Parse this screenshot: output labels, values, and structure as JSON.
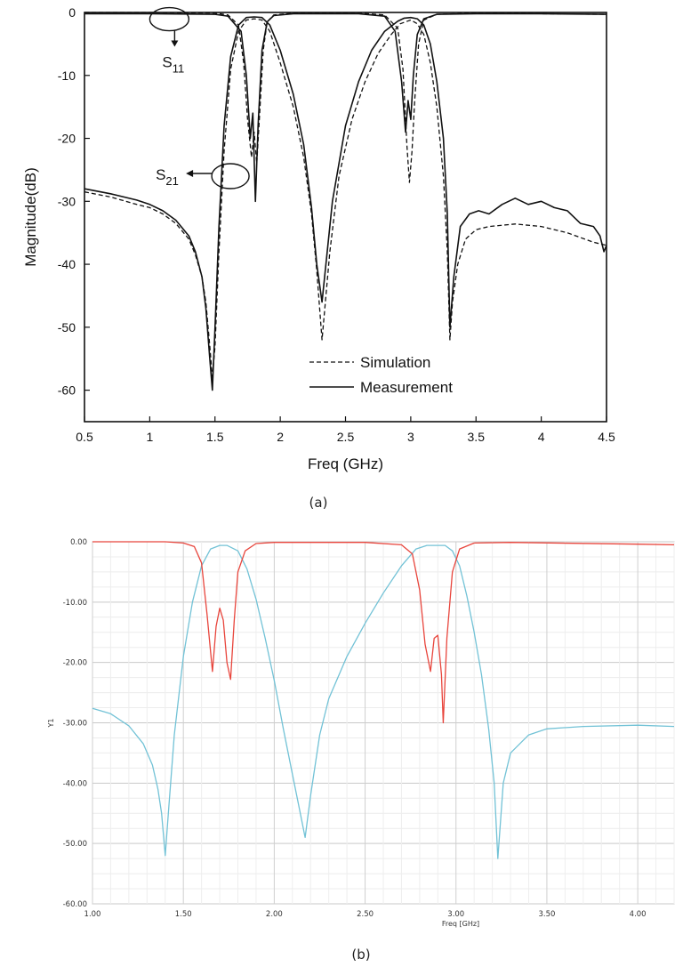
{
  "chart_data": [
    {
      "type": "line",
      "panel_label": "(a)",
      "xlabel": "Freq (GHz)",
      "ylabel": "Magnitude(dB)",
      "xlim": [
        0.5,
        4.5
      ],
      "ylim": [
        -65,
        0
      ],
      "xticks": [
        0.5,
        1,
        1.5,
        2,
        2.5,
        3,
        3.5,
        4,
        4.5
      ],
      "xtick_labels": [
        "0.5",
        "1",
        "1.5",
        "2",
        "2.5",
        "3",
        "3.5",
        "4",
        "4.5"
      ],
      "yticks": [
        0,
        -10,
        -20,
        -30,
        -40,
        -50,
        -60
      ],
      "ytick_labels": [
        "0",
        "-10",
        "-20",
        "-30",
        "-40",
        "-50",
        "-60"
      ],
      "grid": false,
      "legend": {
        "position": "bottom-center",
        "entries": [
          {
            "label": "Simulation",
            "style": "dashed"
          },
          {
            "label": "Measurement",
            "style": "solid"
          }
        ]
      },
      "annotations": [
        {
          "text": "S",
          "sub": "11",
          "target_x": 1.15,
          "target_y": -0.5
        },
        {
          "text": "S",
          "sub": "21",
          "target_x": 1.55,
          "target_y": -26
        }
      ],
      "series": [
        {
          "name": "Simulation",
          "parameter": "S21",
          "style": "dashed",
          "x": [
            0.5,
            0.7,
            0.9,
            1.0,
            1.1,
            1.2,
            1.3,
            1.35,
            1.4,
            1.43,
            1.46,
            1.48,
            1.5,
            1.53,
            1.57,
            1.62,
            1.68,
            1.74,
            1.8,
            1.86,
            1.92,
            2.0,
            2.1,
            2.18,
            2.24,
            2.28,
            2.32,
            2.38,
            2.45,
            2.55,
            2.65,
            2.75,
            2.85,
            2.92,
            3.0,
            3.05,
            3.1,
            3.15,
            3.2,
            3.25,
            3.28,
            3.3,
            3.32,
            3.36,
            3.42,
            3.5,
            3.6,
            3.8,
            4.0,
            4.2,
            4.4,
            4.5
          ],
          "y": [
            -28.5,
            -29.3,
            -30.5,
            -31.0,
            -32.0,
            -33.5,
            -36.0,
            -38.5,
            -42.0,
            -46.0,
            -53.0,
            -58.0,
            -53.0,
            -38.0,
            -22.0,
            -9.0,
            -3.0,
            -1.2,
            -1.0,
            -1.2,
            -3.0,
            -8.0,
            -15.0,
            -23.0,
            -32.0,
            -41.0,
            -52.0,
            -38.0,
            -26.0,
            -17.0,
            -11.0,
            -6.5,
            -3.5,
            -1.8,
            -1.2,
            -1.8,
            -3.5,
            -8.0,
            -15.0,
            -26.0,
            -38.0,
            -52.0,
            -46.0,
            -40.0,
            -36.0,
            -34.5,
            -34.0,
            -33.6,
            -34.0,
            -35.0,
            -36.5,
            -37.0
          ]
        },
        {
          "name": "Simulation",
          "parameter": "S11",
          "style": "dashed",
          "x": [
            0.5,
            1.0,
            1.5,
            1.6,
            1.68,
            1.72,
            1.75,
            1.78,
            1.8,
            1.82,
            1.84,
            1.87,
            1.9,
            1.95,
            2.1,
            2.6,
            2.8,
            2.9,
            2.94,
            2.97,
            2.99,
            3.01,
            3.03,
            3.06,
            3.1,
            3.2,
            3.5,
            4.0,
            4.5
          ],
          "y": [
            0,
            0,
            -0.1,
            -0.4,
            -2.0,
            -8.0,
            -17.0,
            -23.0,
            -19.0,
            -24.0,
            -17.0,
            -6.0,
            -1.5,
            -0.4,
            -0.1,
            -0.1,
            -0.4,
            -2.5,
            -9.0,
            -21.0,
            -27.0,
            -22.0,
            -14.0,
            -5.0,
            -1.2,
            -0.3,
            -0.1,
            -0.2,
            -0.3
          ]
        },
        {
          "name": "Measurement",
          "parameter": "S21",
          "style": "solid",
          "x": [
            0.5,
            0.7,
            0.9,
            1.0,
            1.1,
            1.2,
            1.3,
            1.35,
            1.4,
            1.43,
            1.46,
            1.48,
            1.5,
            1.53,
            1.57,
            1.62,
            1.68,
            1.74,
            1.8,
            1.86,
            1.92,
            2.0,
            2.1,
            2.18,
            2.24,
            2.28,
            2.32,
            2.4,
            2.5,
            2.6,
            2.7,
            2.8,
            2.9,
            2.95,
            3.0,
            3.05,
            3.1,
            3.15,
            3.2,
            3.25,
            3.28,
            3.3,
            3.33,
            3.38,
            3.45,
            3.52,
            3.6,
            3.7,
            3.8,
            3.9,
            4.0,
            4.1,
            4.2,
            4.3,
            4.4,
            4.45,
            4.48,
            4.5
          ],
          "y": [
            -28.0,
            -28.8,
            -29.8,
            -30.5,
            -31.5,
            -33.0,
            -35.5,
            -38.0,
            -42.0,
            -47.0,
            -55.0,
            -60.0,
            -50.0,
            -34.0,
            -18.0,
            -7.0,
            -2.0,
            -0.8,
            -0.7,
            -0.8,
            -2.0,
            -6.0,
            -13.0,
            -21.0,
            -31.0,
            -40.0,
            -46.0,
            -30.0,
            -18.0,
            -11.0,
            -6.0,
            -3.0,
            -1.4,
            -0.9,
            -0.8,
            -1.0,
            -2.0,
            -5.0,
            -11.0,
            -20.0,
            -32.0,
            -50.0,
            -42.0,
            -34.0,
            -32.0,
            -31.5,
            -32.0,
            -30.5,
            -29.5,
            -30.5,
            -30.0,
            -31.0,
            -31.5,
            -33.5,
            -34.0,
            -35.5,
            -38.0,
            -37.0
          ]
        },
        {
          "name": "Measurement",
          "parameter": "S11",
          "style": "solid",
          "x": [
            0.5,
            1.0,
            1.5,
            1.6,
            1.7,
            1.74,
            1.77,
            1.79,
            1.81,
            1.83,
            1.86,
            1.9,
            1.95,
            2.1,
            2.6,
            2.8,
            2.88,
            2.93,
            2.96,
            2.98,
            3.0,
            3.02,
            3.05,
            3.1,
            3.2,
            3.5,
            4.0,
            4.5
          ],
          "y": [
            -0.2,
            -0.2,
            -0.3,
            -0.6,
            -3.0,
            -10.0,
            -20.0,
            -16.0,
            -30.0,
            -18.0,
            -6.0,
            -1.5,
            -0.5,
            -0.2,
            -0.2,
            -0.6,
            -3.0,
            -11.0,
            -19.0,
            -14.0,
            -17.0,
            -10.0,
            -3.5,
            -1.0,
            -0.3,
            -0.2,
            -0.2,
            -0.3
          ]
        }
      ]
    },
    {
      "type": "line",
      "panel_label": "(b)",
      "xlabel": "Freq [GHz]",
      "ylabel": "Y1",
      "xlim": [
        1.0,
        4.2
      ],
      "ylim": [
        -60,
        0
      ],
      "xticks": [
        1.0,
        1.5,
        2.0,
        2.5,
        3.0,
        3.5,
        4.0
      ],
      "xtick_labels": [
        "1.00",
        "1.50",
        "2.00",
        "2.50",
        "3.00",
        "3.50",
        "4.00"
      ],
      "yticks": [
        0,
        -10,
        -20,
        -30,
        -40,
        -50,
        -60
      ],
      "ytick_labels": [
        "0.00",
        "-10.00",
        "-20.00",
        "-30.00",
        "-40.00",
        "-50.00",
        "-60.00"
      ],
      "grid": true,
      "series": [
        {
          "parameter": "S21",
          "color": "#72c2d6",
          "x": [
            1.0,
            1.1,
            1.2,
            1.28,
            1.33,
            1.36,
            1.38,
            1.4,
            1.42,
            1.45,
            1.5,
            1.55,
            1.6,
            1.65,
            1.7,
            1.74,
            1.8,
            1.85,
            1.9,
            1.95,
            2.0,
            2.05,
            2.1,
            2.14,
            2.17,
            2.2,
            2.25,
            2.3,
            2.4,
            2.5,
            2.6,
            2.7,
            2.78,
            2.84,
            2.9,
            2.94,
            2.98,
            3.02,
            3.06,
            3.1,
            3.14,
            3.18,
            3.21,
            3.23,
            3.26,
            3.3,
            3.4,
            3.5,
            3.7,
            4.0,
            4.2
          ],
          "y": [
            -27.6,
            -28.5,
            -30.5,
            -33.5,
            -37.0,
            -41.0,
            -45.0,
            -52.0,
            -44.0,
            -32.0,
            -19.0,
            -10.0,
            -4.0,
            -1.2,
            -0.6,
            -0.6,
            -1.5,
            -4.5,
            -9.5,
            -16.0,
            -23.0,
            -31.0,
            -38.5,
            -44.5,
            -49.0,
            -42.0,
            -32.0,
            -26.0,
            -19.0,
            -13.5,
            -8.5,
            -4.0,
            -1.2,
            -0.6,
            -0.6,
            -0.6,
            -1.5,
            -4.0,
            -9.0,
            -15.0,
            -22.0,
            -31.0,
            -40.0,
            -52.5,
            -40.0,
            -35.0,
            -32.0,
            -31.0,
            -30.6,
            -30.4,
            -30.6
          ]
        },
        {
          "parameter": "S11",
          "color": "#e8453c",
          "x": [
            1.0,
            1.4,
            1.5,
            1.56,
            1.6,
            1.63,
            1.66,
            1.68,
            1.7,
            1.72,
            1.74,
            1.76,
            1.78,
            1.8,
            1.84,
            1.9,
            2.0,
            2.5,
            2.7,
            2.76,
            2.8,
            2.83,
            2.86,
            2.88,
            2.9,
            2.92,
            2.93,
            2.95,
            2.98,
            3.02,
            3.1,
            3.3,
            4.0,
            4.2
          ],
          "y": [
            0,
            0,
            -0.2,
            -0.8,
            -3.5,
            -12.0,
            -21.5,
            -14.0,
            -11.0,
            -13.0,
            -20.0,
            -22.8,
            -13.0,
            -5.0,
            -1.5,
            -0.3,
            -0.1,
            -0.1,
            -0.5,
            -2.0,
            -8.0,
            -17.0,
            -21.5,
            -16.0,
            -15.5,
            -22.0,
            -30.0,
            -16.0,
            -5.0,
            -1.2,
            -0.2,
            -0.1,
            -0.4,
            -0.5
          ]
        }
      ]
    }
  ]
}
